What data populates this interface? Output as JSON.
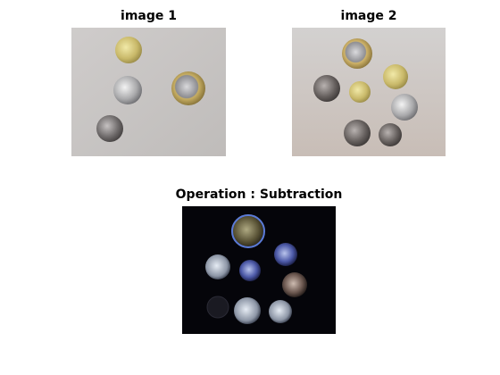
{
  "figure": {
    "panels": [
      {
        "title": "image 1"
      },
      {
        "title": "image 2"
      },
      {
        "title": "Operation : Subtraction"
      }
    ]
  }
}
